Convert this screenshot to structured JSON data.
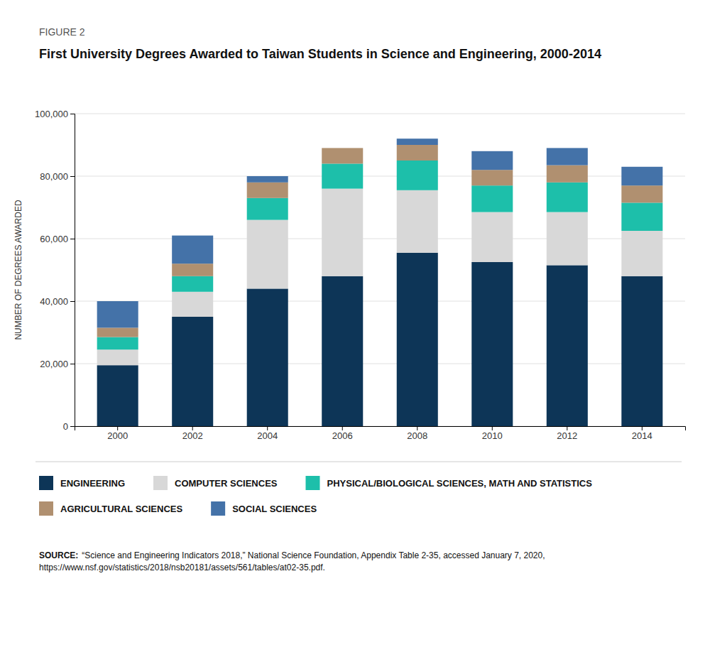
{
  "chart_data": {
    "type": "bar",
    "stacked": true,
    "grid": true,
    "legend": "bottom",
    "title": "First University Degrees Awarded to Taiwan Students in Science and Engineering, 2000-2014",
    "annotations": [
      "FIGURE 2",
      "SOURCE:",
      "“Science and Engineering Indicators 2018,” National Science Foundation, Appendix Table 2-35, accessed January 7, 2020, https://www.nsf.gov/statistics/2018/nsb20181/assets/561/tables/at02-35.pdf."
    ],
    "ylabel": "NUMBER OF DEGREES AWARDED",
    "categories": [
      "2000",
      "2002",
      "2004",
      "2006",
      "2008",
      "2010",
      "2012",
      "2014"
    ],
    "series": [
      {
        "name": "ENGINEERING",
        "color": "#0d3557",
        "values": [
          19500,
          35000,
          44000,
          48000,
          55500,
          52500,
          51500,
          48000
        ]
      },
      {
        "name": "COMPUTER SCIENCES",
        "color": "#d8d8d8",
        "values": [
          5000,
          8000,
          22000,
          28000,
          20000,
          16000,
          17000,
          14500
        ]
      },
      {
        "name": "PHYSICAL/BIOLOGICAL SCIENCES, MATH AND STATISTICS",
        "color": "#1dbfaa",
        "values": [
          4000,
          5000,
          7000,
          8000,
          9500,
          8500,
          9500,
          9000
        ]
      },
      {
        "name": "AGRICULTURAL SCIENCES",
        "color": "#b09070",
        "values": [
          3000,
          4000,
          5000,
          5000,
          5000,
          5000,
          5500,
          5500
        ]
      },
      {
        "name": "SOCIAL SCIENCES",
        "color": "#4472a8",
        "values": [
          8500,
          9000,
          2000,
          0,
          2000,
          6000,
          5500,
          6000
        ]
      }
    ],
    "ylim": [
      0,
      100000
    ],
    "yticks": [
      0,
      {
        "value": 20000,
        "label": "20,000"
      },
      {
        "value": 40000,
        "label": "40,000"
      },
      {
        "value": 60000,
        "label": "60,000"
      },
      {
        "value": 80000,
        "label": "80,000"
      },
      {
        "value": 100000,
        "label": "100,000"
      }
    ]
  }
}
